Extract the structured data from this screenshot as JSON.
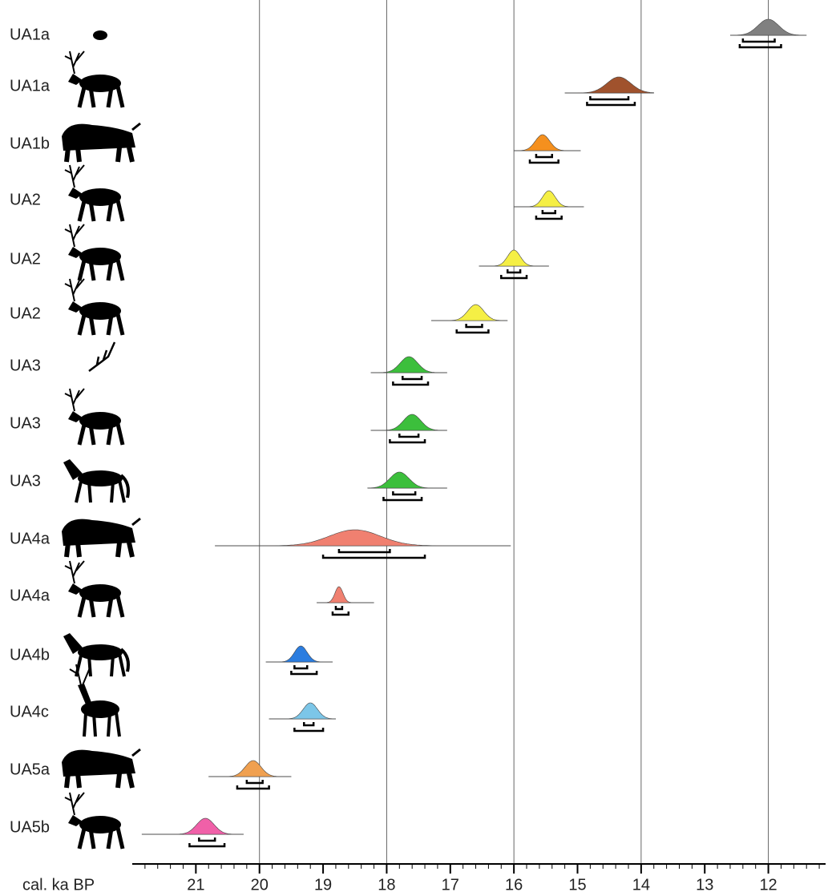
{
  "chart_data": {
    "type": "calibration",
    "xlabel": "cal. ka BP",
    "xlim": [
      22,
      11.1
    ],
    "xticks": [
      21,
      20,
      19,
      18,
      17,
      16,
      15,
      14,
      13,
      12
    ],
    "xminorticks": [
      21.8,
      21.6,
      21.4,
      21.2,
      20.8,
      20.6,
      20.4,
      20.2,
      19.8,
      19.6,
      19.4,
      19.2,
      18.8,
      18.6,
      18.4,
      18.2,
      17.8,
      17.6,
      17.4,
      17.2,
      16.8,
      16.6,
      16.4,
      16.2,
      15.8,
      15.6,
      15.4,
      15.2,
      14.8,
      14.6,
      14.4,
      14.2,
      13.8,
      13.6,
      13.4,
      13.2,
      12.8,
      12.6,
      12.4,
      12.2,
      11.8,
      11.6,
      11.4,
      11.2
    ],
    "gridlines": [
      20,
      18,
      16,
      14,
      12
    ],
    "samples": [
      {
        "label": "UA1a",
        "color": "#808080",
        "extent": [
          12.6,
          11.4
        ],
        "peak": 12.0,
        "range_68": [
          12.4,
          11.9
        ],
        "range_95": [
          12.45,
          11.8
        ]
      },
      {
        "label": "UA1a",
        "color": "#a0522d",
        "extent": [
          15.2,
          13.8
        ],
        "peak": 14.35,
        "range_68": [
          14.8,
          14.2
        ],
        "range_95": [
          14.85,
          14.1
        ]
      },
      {
        "label": "UA1b",
        "color": "#f5901e",
        "extent": [
          16.0,
          14.95
        ],
        "peak": 15.55,
        "range_68": [
          15.65,
          15.4
        ],
        "range_95": [
          15.75,
          15.3
        ]
      },
      {
        "label": "UA2",
        "color": "#f5ef45",
        "extent": [
          16.0,
          14.9
        ],
        "peak": 15.45,
        "range_68": [
          15.55,
          15.35
        ],
        "range_95": [
          15.65,
          15.25
        ]
      },
      {
        "label": "UA2",
        "color": "#f5ef45",
        "extent": [
          16.55,
          15.45
        ],
        "peak": 16.0,
        "range_68": [
          16.1,
          15.9
        ],
        "range_95": [
          16.2,
          15.8
        ]
      },
      {
        "label": "UA2",
        "color": "#f5ef45",
        "extent": [
          17.3,
          16.1
        ],
        "peak": 16.6,
        "range_68": [
          16.75,
          16.5
        ],
        "range_95": [
          16.9,
          16.4
        ]
      },
      {
        "label": "UA3",
        "color": "#3cbf3c",
        "extent": [
          18.25,
          17.05
        ],
        "peak": 17.65,
        "range_68": [
          17.75,
          17.45
        ],
        "range_95": [
          17.9,
          17.35
        ]
      },
      {
        "label": "UA3",
        "color": "#3cbf3c",
        "extent": [
          18.25,
          17.05
        ],
        "peak": 17.6,
        "range_68": [
          17.8,
          17.5
        ],
        "range_95": [
          17.95,
          17.4
        ]
      },
      {
        "label": "UA3",
        "color": "#3cbf3c",
        "extent": [
          18.3,
          17.05
        ],
        "peak": 17.8,
        "range_68": [
          17.9,
          17.55
        ],
        "range_95": [
          18.05,
          17.45
        ]
      },
      {
        "label": "UA4a",
        "color": "#f08070",
        "extent": [
          20.7,
          16.05
        ],
        "peak": 18.5,
        "range_68": [
          18.75,
          17.95
        ],
        "range_95": [
          19.0,
          17.4
        ]
      },
      {
        "label": "UA4a",
        "color": "#f08070",
        "extent": [
          19.1,
          18.2
        ],
        "peak": 18.75,
        "range_68": [
          18.8,
          18.7
        ],
        "range_95": [
          18.85,
          18.6
        ]
      },
      {
        "label": "UA4b",
        "color": "#2b7de0",
        "extent": [
          19.9,
          18.85
        ],
        "peak": 19.35,
        "range_68": [
          19.45,
          19.25
        ],
        "range_95": [
          19.5,
          19.1
        ]
      },
      {
        "label": "UA4c",
        "color": "#7cc6e8",
        "extent": [
          19.85,
          18.8
        ],
        "peak": 19.2,
        "range_68": [
          19.3,
          19.15
        ],
        "range_95": [
          19.45,
          19.0
        ]
      },
      {
        "label": "UA5a",
        "color": "#f0a050",
        "extent": [
          20.8,
          19.5
        ],
        "peak": 20.1,
        "range_68": [
          20.2,
          19.95
        ],
        "range_95": [
          20.35,
          19.85
        ]
      },
      {
        "label": "UA5b",
        "color": "#f060a8",
        "extent": [
          21.85,
          20.25
        ],
        "peak": 20.85,
        "range_68": [
          20.95,
          20.7
        ],
        "range_95": [
          21.1,
          20.55
        ]
      }
    ]
  }
}
